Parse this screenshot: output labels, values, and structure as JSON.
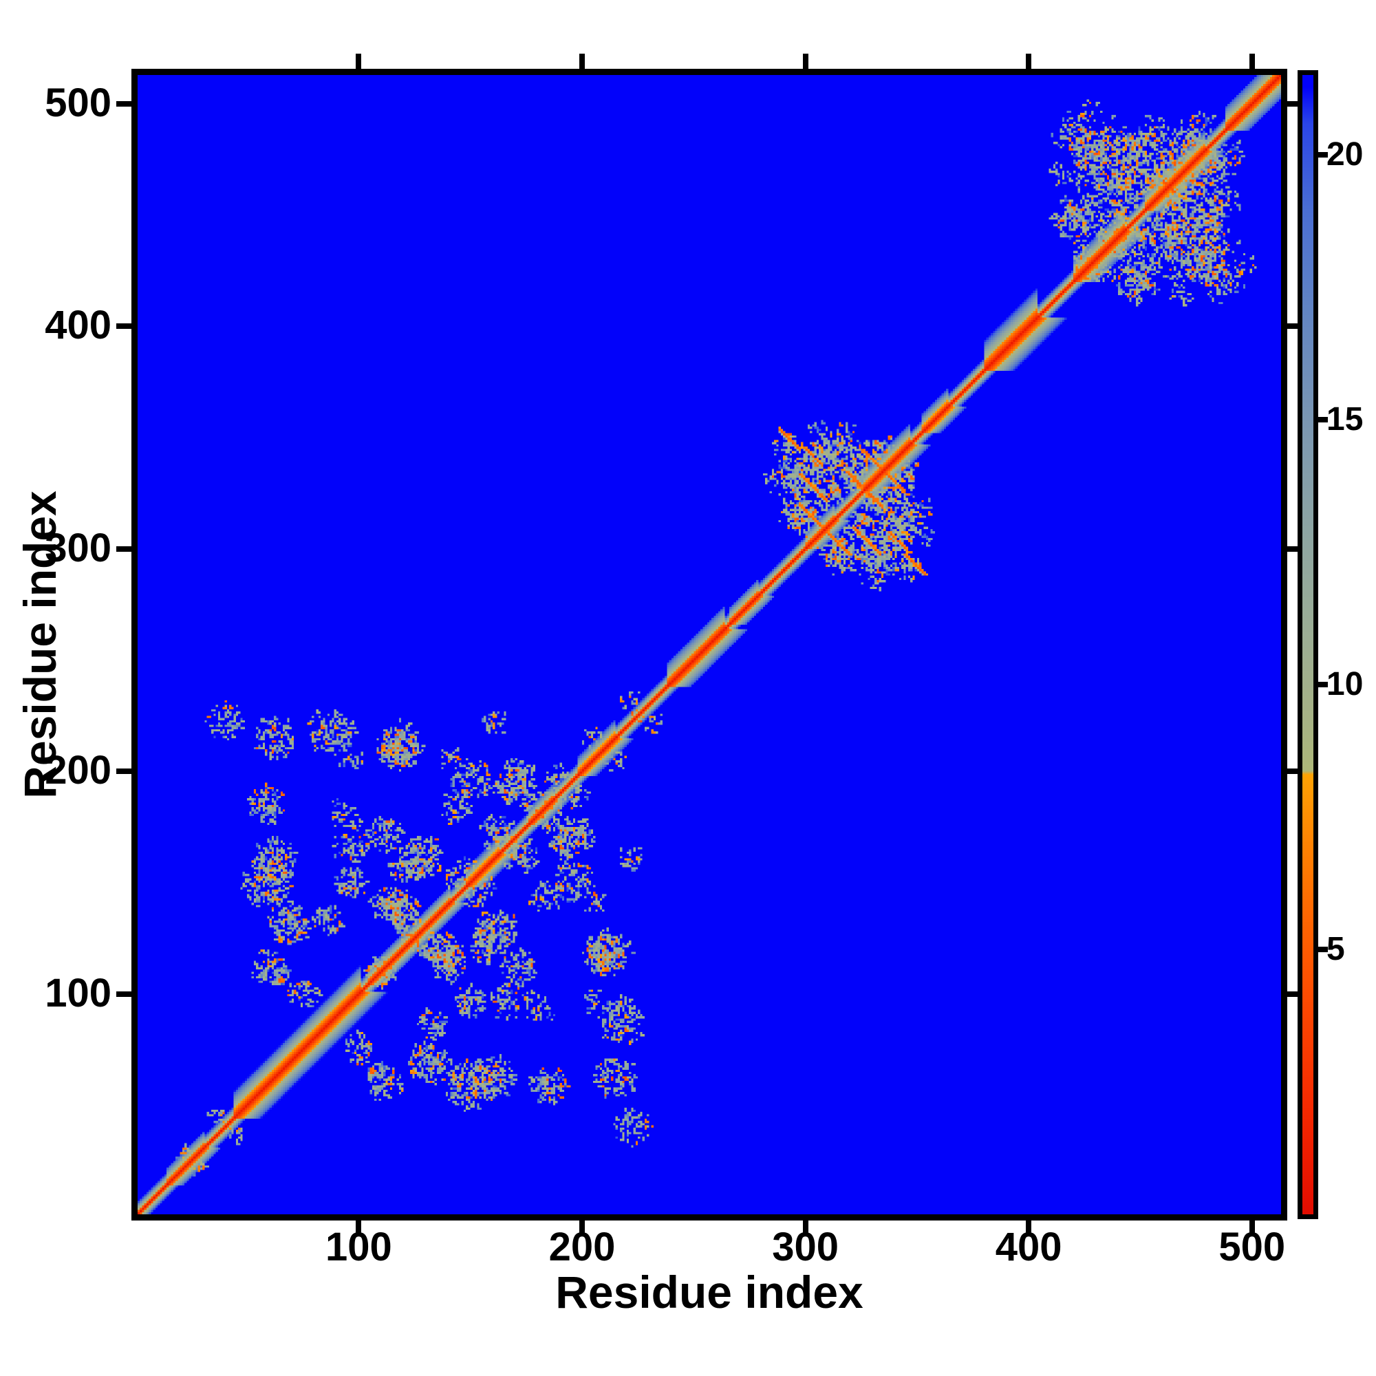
{
  "page": {
    "background": "#ffffff"
  },
  "chart_data": {
    "type": "heatmap",
    "title": "",
    "xlabel": "Residue index",
    "ylabel": "Residue index",
    "x_tick_labels": [
      "100",
      "200",
      "300",
      "400",
      "500"
    ],
    "x_tick_values": [
      100,
      200,
      300,
      400,
      500
    ],
    "y_tick_labels": [
      "100",
      "200",
      "300",
      "400",
      "500"
    ],
    "y_tick_values": [
      100,
      200,
      300,
      400,
      500
    ],
    "axis_min": 1,
    "axis_max": 512,
    "n_residues": 512,
    "grid": false,
    "legend": "none",
    "colorbar": {
      "position": "right",
      "tick_labels": [
        "20",
        "15",
        "10",
        "5"
      ],
      "tick_values": [
        20,
        15,
        10,
        5
      ],
      "vmin": 0,
      "vmax": 21.5
    },
    "colormap": {
      "background_color": "#0202fa",
      "stops": [
        [
          0.0,
          "#e30d00"
        ],
        [
          2.0,
          "#f62a01"
        ],
        [
          4.0,
          "#fd4a01"
        ],
        [
          5.5,
          "#ff6502"
        ],
        [
          7.0,
          "#ff8403"
        ],
        [
          8.3,
          "#ffa305"
        ],
        [
          8.36,
          "#aeb87a"
        ],
        [
          9.5,
          "#a6b287"
        ],
        [
          11.0,
          "#9cae96"
        ],
        [
          13.0,
          "#8da5a4"
        ],
        [
          15.0,
          "#7b97b3"
        ],
        [
          17.0,
          "#6386c3"
        ],
        [
          19.0,
          "#4a6ed4"
        ],
        [
          20.6,
          "#2b46e8"
        ],
        [
          21.3,
          "#0202fa"
        ],
        [
          21.5,
          "#0202fa"
        ]
      ]
    },
    "heatmap": {
      "background_value": 21.5,
      "diagonal_core_value": 1.0,
      "diagonal_slope": 3.8,
      "diagonal_base_halfwidth": 2.2,
      "helix_bulges": [
        [
          14,
          30,
          3.2
        ],
        [
          44,
          100,
          5.0
        ],
        [
          104,
          140,
          3.2
        ],
        [
          148,
          162,
          3.5
        ],
        [
          176,
          186,
          3.2
        ],
        [
          198,
          214,
          3.5
        ],
        [
          238,
          263,
          4.5
        ],
        [
          266,
          278,
          3.2
        ],
        [
          300,
          312,
          3.2
        ],
        [
          326,
          346,
          4.0
        ],
        [
          352,
          363,
          3.5
        ],
        [
          380,
          403,
          5.5
        ],
        [
          420,
          442,
          4.5
        ],
        [
          452,
          478,
          4.0
        ],
        [
          488,
          512,
          4.5
        ]
      ],
      "clusters": [
        [
          40,
          222,
          9,
          0.5
        ],
        [
          87,
          217,
          11,
          0.42
        ],
        [
          118,
          211,
          11,
          0.48
        ],
        [
          150,
          197,
          10,
          0.42
        ],
        [
          168,
          193,
          9,
          0.48
        ],
        [
          180,
          184,
          8,
          0.45
        ],
        [
          197,
          171,
          9,
          0.42
        ],
        [
          163,
          171,
          10,
          0.5
        ],
        [
          143,
          183,
          8,
          0.38
        ],
        [
          128,
          161,
          10,
          0.45
        ],
        [
          147,
          152,
          9,
          0.48
        ],
        [
          58,
          150,
          12,
          0.5
        ],
        [
          68,
          131,
          10,
          0.5
        ],
        [
          60,
          111,
          9,
          0.48
        ],
        [
          75,
          99,
          8,
          0.4
        ],
        [
          100,
          169,
          8,
          0.32
        ],
        [
          95,
          150,
          7,
          0.28
        ],
        [
          112,
          140,
          9,
          0.45
        ],
        [
          123,
          128,
          8,
          0.45
        ],
        [
          138,
          118,
          9,
          0.5
        ],
        [
          157,
          122,
          9,
          0.45
        ],
        [
          171,
          112,
          8,
          0.42
        ],
        [
          210,
          116,
          8,
          0.42
        ],
        [
          204,
          96,
          6,
          0.32
        ],
        [
          150,
          96,
          8,
          0.42
        ],
        [
          133,
          86,
          7,
          0.42
        ],
        [
          160,
          62,
          10,
          0.45
        ],
        [
          184,
          58,
          9,
          0.45
        ],
        [
          214,
          62,
          10,
          0.45
        ],
        [
          110,
          108,
          7,
          0.45
        ],
        [
          92,
          181,
          7,
          0.3
        ],
        [
          222,
          161,
          6,
          0.28
        ],
        [
          205,
          141,
          6,
          0.28
        ],
        [
          230,
          222,
          6,
          0.3
        ],
        [
          196,
          188,
          7,
          0.35
        ],
        [
          214,
          205,
          6,
          0.3
        ],
        [
          22,
          26,
          5,
          0.4
        ],
        [
          36,
          44,
          5,
          0.35
        ],
        [
          300,
          332,
          12,
          0.5
        ],
        [
          313,
          344,
          9,
          0.45
        ],
        [
          330,
          342,
          8,
          0.45
        ],
        [
          296,
          316,
          9,
          0.5
        ],
        [
          318,
          330,
          10,
          0.45
        ],
        [
          334,
          322,
          8,
          0.45
        ],
        [
          342,
          308,
          8,
          0.45
        ],
        [
          330,
          298,
          7,
          0.45
        ],
        [
          312,
          300,
          7,
          0.4
        ],
        [
          345,
          335,
          6,
          0.4
        ],
        [
          290,
          345,
          7,
          0.4
        ],
        [
          350,
          318,
          6,
          0.35
        ],
        [
          288,
          330,
          8,
          0.28
        ],
        [
          305,
          352,
          5,
          0.3
        ],
        [
          322,
          310,
          7,
          0.4
        ],
        [
          432,
          472,
          16,
          0.45
        ],
        [
          452,
          478,
          12,
          0.42
        ],
        [
          468,
          462,
          11,
          0.45
        ],
        [
          420,
          448,
          11,
          0.45
        ],
        [
          441,
          441,
          12,
          0.45
        ],
        [
          462,
          447,
          9,
          0.45
        ],
        [
          477,
          442,
          12,
          0.45
        ],
        [
          427,
          428,
          9,
          0.45
        ],
        [
          483,
          472,
          9,
          0.4
        ],
        [
          449,
          424,
          8,
          0.4
        ],
        [
          418,
          485,
          8,
          0.3
        ],
        [
          468,
          480,
          8,
          0.38
        ],
        [
          488,
          455,
          7,
          0.35
        ],
        [
          437,
          458,
          10,
          0.45
        ],
        [
          457,
          464,
          9,
          0.42
        ],
        [
          425,
          491,
          13,
          0.15
        ],
        [
          413,
          468,
          6,
          0.25
        ],
        [
          480,
          428,
          7,
          0.35
        ],
        [
          490,
          478,
          6,
          0.3
        ],
        [
          95,
          165,
          8,
          0.22
        ]
      ],
      "antiparallel_streaks": [
        [
          616,
          297,
          309
        ],
        [
          630,
          297,
          309
        ],
        [
          644,
          298,
          307
        ],
        [
          652,
          318,
          329
        ],
        [
          669,
          324,
          334
        ],
        [
          641,
          288,
          297
        ]
      ],
      "speckle": {
        "sage_min": 9.0,
        "sage_range": 6.0,
        "sage_p": 0.6,
        "steel_min": 15.0,
        "steel_range": 5.5,
        "steel_p": 0.15,
        "orange_min": 4.8,
        "orange_range": 3.4,
        "orange_p": 0.13,
        "run_extend_p": 0.4
      },
      "seed": 7
    }
  }
}
